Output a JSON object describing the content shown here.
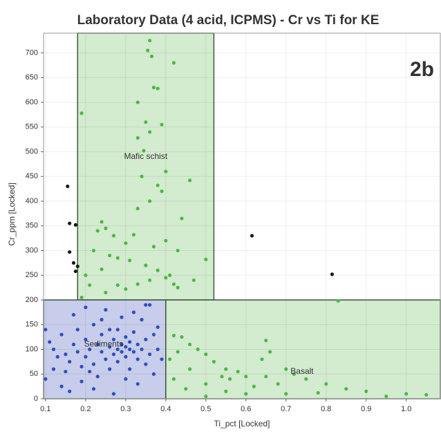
{
  "chart_data": {
    "type": "scatter",
    "title": "Laboratory Data (4 acid, ICPMS) - Cr vs Ti for KE",
    "x_label": "Ti_pct [Locked]",
    "y_label": "Cr_ppm [Locked]",
    "annotation": "2b",
    "xlim": [
      0.095,
      1.085
    ],
    "ylim": [
      0,
      740
    ],
    "xticks": [
      0.1,
      0.2,
      0.3,
      0.4,
      0.5,
      0.6,
      0.7,
      0.8,
      0.9,
      {
        "value": 1,
        "label": "1.0"
      }
    ],
    "yticks": [
      0,
      50,
      100,
      150,
      200,
      250,
      300,
      350,
      400,
      450,
      500,
      550,
      600,
      650,
      700
    ],
    "grid": true,
    "regions": [
      {
        "label": "Mafic schist",
        "x0": 0.18,
        "x1": 0.52,
        "y0": 200,
        "y1": 740,
        "label_x": 0.35,
        "label_y": 490,
        "color": "#d3ebcf"
      },
      {
        "label": "Sediments",
        "x0": 0.095,
        "x1": 0.4,
        "y0": 0,
        "y1": 200,
        "label_x": 0.245,
        "label_y": 110,
        "color": "#c7cdea"
      },
      {
        "label": "Basalt",
        "x0": 0.4,
        "x1": 1.085,
        "y0": 0,
        "y1": 200,
        "label_x": 0.74,
        "label_y": 55,
        "color": "#d3ebcf"
      }
    ],
    "series": [
      {
        "color": "#1a1a1a",
        "x": [
          0.155,
          0.16,
          0.16,
          0.175,
          0.17,
          0.175,
          0.18,
          0.615,
          0.815
        ],
        "values": [
          430,
          355,
          297,
          352,
          275,
          258,
          268,
          330,
          252
        ]
      },
      {
        "color": "#4db848",
        "x": [
          0.19,
          0.355,
          0.36,
          0.365,
          0.42,
          0.37,
          0.38,
          0.33,
          0.35,
          0.39,
          0.36,
          0.33,
          0.345,
          0.4,
          0.46,
          0.34,
          0.38,
          0.39,
          0.36,
          0.33,
          0.44,
          0.24,
          0.25,
          0.23,
          0.27,
          0.3,
          0.32,
          0.37,
          0.4,
          0.43,
          0.26,
          0.28,
          0.22,
          0.31,
          0.5,
          0.35,
          0.38,
          0.41,
          0.24,
          0.2,
          0.47,
          0.42,
          0.43,
          0.33,
          0.28,
          0.3,
          0.36,
          0.21,
          0.4,
          0.25,
          0.19,
          0.83,
          0.42,
          0.44,
          0.46,
          0.48,
          0.5,
          0.43,
          0.52,
          0.55,
          0.58,
          0.6,
          0.56,
          0.54,
          0.65,
          0.66,
          0.64,
          0.7,
          0.72,
          0.75,
          0.68,
          0.62,
          0.5,
          0.45,
          0.42,
          0.8,
          0.85,
          0.9,
          1.0,
          1.05,
          0.7,
          0.6,
          0.5,
          0.95,
          0.78,
          0.55,
          0.65,
          0.46,
          0.41
        ],
        "values": [
          578,
          705,
          725,
          693,
          680,
          630,
          628,
          600,
          560,
          555,
          540,
          528,
          502,
          460,
          442,
          450,
          432,
          420,
          400,
          385,
          365,
          358,
          345,
          340,
          330,
          315,
          332,
          308,
          320,
          300,
          290,
          285,
          300,
          280,
          282,
          270,
          260,
          250,
          262,
          250,
          240,
          232,
          225,
          232,
          230,
          222,
          240,
          230,
          245,
          215,
          205,
          198,
          128,
          125,
          110,
          100,
          90,
          95,
          75,
          60,
          55,
          45,
          40,
          45,
          118,
          95,
          80,
          60,
          50,
          40,
          30,
          25,
          30,
          20,
          40,
          30,
          20,
          15,
          10,
          8,
          10,
          10,
          5,
          5,
          12,
          15,
          45,
          60,
          80
        ]
      },
      {
        "color": "#2e4fc0",
        "x": [
          0.1,
          0.11,
          0.12,
          0.13,
          0.12,
          0.1,
          0.14,
          0.15,
          0.16,
          0.15,
          0.17,
          0.18,
          0.18,
          0.19,
          0.2,
          0.2,
          0.21,
          0.22,
          0.22,
          0.23,
          0.23,
          0.24,
          0.24,
          0.25,
          0.25,
          0.26,
          0.26,
          0.27,
          0.27,
          0.28,
          0.28,
          0.28,
          0.29,
          0.29,
          0.3,
          0.3,
          0.3,
          0.31,
          0.31,
          0.31,
          0.32,
          0.32,
          0.33,
          0.33,
          0.34,
          0.34,
          0.35,
          0.35,
          0.36,
          0.36,
          0.37,
          0.37,
          0.38,
          0.38,
          0.39,
          0.2,
          0.17,
          0.14,
          0.16,
          0.22,
          0.27,
          0.3,
          0.33,
          0.24,
          0.29,
          0.32,
          0.19,
          0.26,
          0.35,
          0.21
        ],
        "values": [
          140,
          115,
          100,
          85,
          60,
          40,
          130,
          90,
          75,
          55,
          110,
          95,
          140,
          65,
          120,
          85,
          100,
          150,
          70,
          110,
          45,
          95,
          130,
          180,
          80,
          105,
          60,
          120,
          90,
          100,
          140,
          75,
          110,
          95,
          105,
          125,
          85,
          100,
          115,
          60,
          95,
          135,
          110,
          80,
          100,
          160,
          120,
          70,
          90,
          190,
          130,
          50,
          100,
          145,
          80,
          185,
          170,
          25,
          15,
          20,
          10,
          40,
          30,
          160,
          165,
          175,
          35,
          140,
          190,
          55
        ]
      }
    ]
  }
}
